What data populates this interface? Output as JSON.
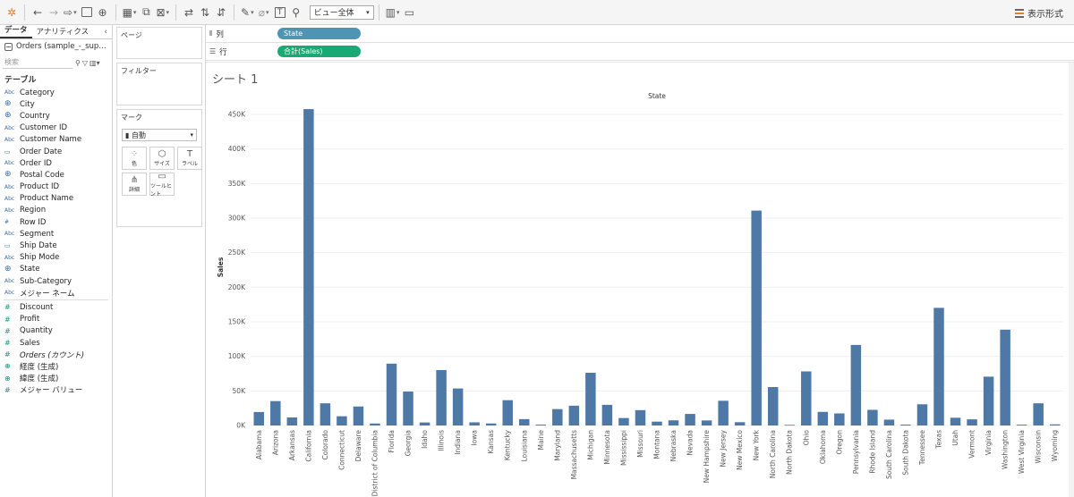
{
  "toolbar": {
    "view_select": "ビュー全体",
    "show_me_label": "表示形式"
  },
  "left_pane": {
    "tabs": [
      {
        "label": "データ"
      },
      {
        "label": "アナリティクス"
      }
    ],
    "collapse_icon": "chevron-left-icon",
    "datasource": "Orders (sample_-_sup…",
    "search_placeholder": "検索",
    "section_title": "テーブル",
    "dimensions": [
      {
        "type": "Abc",
        "icon": "text",
        "label": "Category"
      },
      {
        "type": "⊕",
        "icon": "globe",
        "label": "City"
      },
      {
        "type": "⊕",
        "icon": "globe",
        "label": "Country"
      },
      {
        "type": "Abc",
        "icon": "text",
        "label": "Customer ID"
      },
      {
        "type": "Abc",
        "icon": "text",
        "label": "Customer Name"
      },
      {
        "type": "▭",
        "icon": "calendar",
        "label": "Order Date"
      },
      {
        "type": "Abc",
        "icon": "text",
        "label": "Order ID"
      },
      {
        "type": "⊕",
        "icon": "globe",
        "label": "Postal Code"
      },
      {
        "type": "Abc",
        "icon": "text",
        "label": "Product ID"
      },
      {
        "type": "Abc",
        "icon": "text",
        "label": "Product Name"
      },
      {
        "type": "Abc",
        "icon": "text",
        "label": "Region"
      },
      {
        "type": "#",
        "icon": "number",
        "label": "Row ID"
      },
      {
        "type": "Abc",
        "icon": "text",
        "label": "Segment"
      },
      {
        "type": "▭",
        "icon": "calendar",
        "label": "Ship Date"
      },
      {
        "type": "Abc",
        "icon": "text",
        "label": "Ship Mode"
      },
      {
        "type": "⊕",
        "icon": "globe",
        "label": "State"
      },
      {
        "type": "Abc",
        "icon": "text",
        "label": "Sub-Category"
      },
      {
        "type": "Abc",
        "icon": "text",
        "label": "メジャー ネーム"
      }
    ],
    "measures": [
      {
        "type": "#",
        "icon": "number",
        "label": "Discount"
      },
      {
        "type": "#",
        "icon": "number",
        "label": "Profit"
      },
      {
        "type": "#",
        "icon": "number",
        "label": "Quantity"
      },
      {
        "type": "#",
        "icon": "number",
        "label": "Sales"
      },
      {
        "type": "#",
        "icon": "number",
        "label": "Orders (カウント)",
        "italic": true
      },
      {
        "type": "⊕",
        "icon": "globe",
        "label": "経度 (生成)"
      },
      {
        "type": "⊕",
        "icon": "globe",
        "label": "緯度 (生成)"
      },
      {
        "type": "#",
        "icon": "number",
        "label": "メジャー バリュー"
      }
    ]
  },
  "cards": {
    "pages": "ページ",
    "filters": "フィルター",
    "marks": "マーク",
    "marks_type": "自動",
    "mark_buttons": [
      {
        "icon": "color-icon",
        "glyph": "⁘",
        "label": "色"
      },
      {
        "icon": "size-icon",
        "glyph": "⬡",
        "label": "サイズ"
      },
      {
        "icon": "text-label-icon",
        "glyph": "T",
        "label": "ラベル"
      },
      {
        "icon": "detail-icon",
        "glyph": "⋔",
        "label": "詳細"
      },
      {
        "icon": "tooltip-icon",
        "glyph": "▭",
        "label": "ツールヒント"
      }
    ]
  },
  "shelves": {
    "columns_label": "列",
    "columns_pill": "State",
    "rows_label": "行",
    "rows_pill": "合計(Sales)"
  },
  "sheet": {
    "title": "シート 1"
  },
  "chart_data": {
    "type": "bar",
    "title": "State",
    "ylabel": "Sales",
    "ylim": [
      0,
      450000
    ],
    "yticks": [
      "0K",
      "50K",
      "100K",
      "150K",
      "200K",
      "250K",
      "300K",
      "350K",
      "400K",
      "450K"
    ],
    "bar_color": "#4e79a7",
    "grid": true,
    "categories": [
      "Alabama",
      "Arizona",
      "Arkansas",
      "California",
      "Colorado",
      "Connecticut",
      "Delaware",
      "District of Columbia",
      "Florida",
      "Georgia",
      "Idaho",
      "Illinois",
      "Indiana",
      "Iowa",
      "Kansas",
      "Kentucky",
      "Louisiana",
      "Maine",
      "Maryland",
      "Massachusetts",
      "Michigan",
      "Minnesota",
      "Mississippi",
      "Missouri",
      "Montana",
      "Nebraska",
      "Nevada",
      "New Hampshire",
      "New Jersey",
      "New Mexico",
      "New York",
      "North Carolina",
      "North Dakota",
      "Ohio",
      "Oklahoma",
      "Oregon",
      "Pennsylvania",
      "Rhode Island",
      "South Carolina",
      "South Dakota",
      "Tennessee",
      "Texas",
      "Utah",
      "Vermont",
      "Virginia",
      "Washington",
      "West Virginia",
      "Wisconsin",
      "Wyoming"
    ],
    "values": [
      19511,
      35282,
      11678,
      457688,
      32108,
      13384,
      27451,
      2865,
      89474,
      49096,
      4382,
      80166,
      53555,
      4580,
      2914,
      36592,
      9217,
      1271,
      23706,
      28634,
      76270,
      29863,
      10771,
      22205,
      5589,
      7465,
      16729,
      7293,
      35764,
      4784,
      310876,
      55603,
      920,
      78258,
      19683,
      17431,
      116512,
      22628,
      8482,
      1316,
      30662,
      170188,
      11220,
      8929,
      70637,
      138641,
      1210,
      32115,
      1603
    ]
  }
}
